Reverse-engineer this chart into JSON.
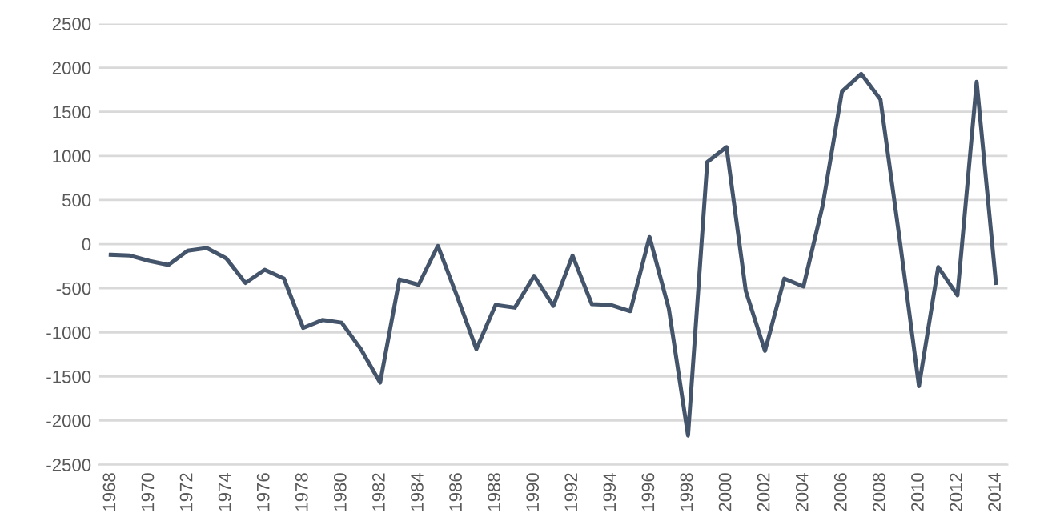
{
  "chart_data": {
    "type": "line",
    "categories": [
      "1968",
      null,
      "1970",
      null,
      "1972",
      null,
      "1974",
      null,
      "1976",
      null,
      "1978",
      null,
      "1980",
      null,
      "1982",
      null,
      "1984",
      null,
      "1986",
      null,
      "1988",
      null,
      "1990",
      null,
      "1992",
      null,
      "1994",
      null,
      "1996",
      null,
      "1998",
      null,
      "2000",
      null,
      "2002",
      null,
      "2004",
      null,
      "2006",
      null,
      "2008",
      null,
      "2010",
      null,
      "2012",
      null,
      "2014"
    ],
    "series": [
      {
        "color": "#44546a",
        "values": [
          -120,
          -130,
          -190,
          -235,
          -75,
          -45,
          -160,
          -440,
          -290,
          -390,
          -950,
          -860,
          -890,
          -1190,
          -1570,
          -400,
          -460,
          -20,
          -590,
          -1190,
          -690,
          -720,
          -360,
          -700,
          -130,
          -680,
          -690,
          -760,
          80,
          -730,
          -2170,
          930,
          1100,
          -530,
          -1210,
          -390,
          -480,
          440,
          1730,
          1930,
          1640,
          50,
          -1610,
          -260,
          -580,
          1840,
          -440
        ]
      }
    ],
    "ylim": [
      -2500,
      2500
    ],
    "yticks": [
      -2500,
      -2000,
      -1500,
      -1000,
      -500,
      0,
      500,
      1000,
      1500,
      2000,
      2500
    ],
    "grid": "y",
    "legend": false,
    "marker": "none",
    "line_style": "solid"
  }
}
